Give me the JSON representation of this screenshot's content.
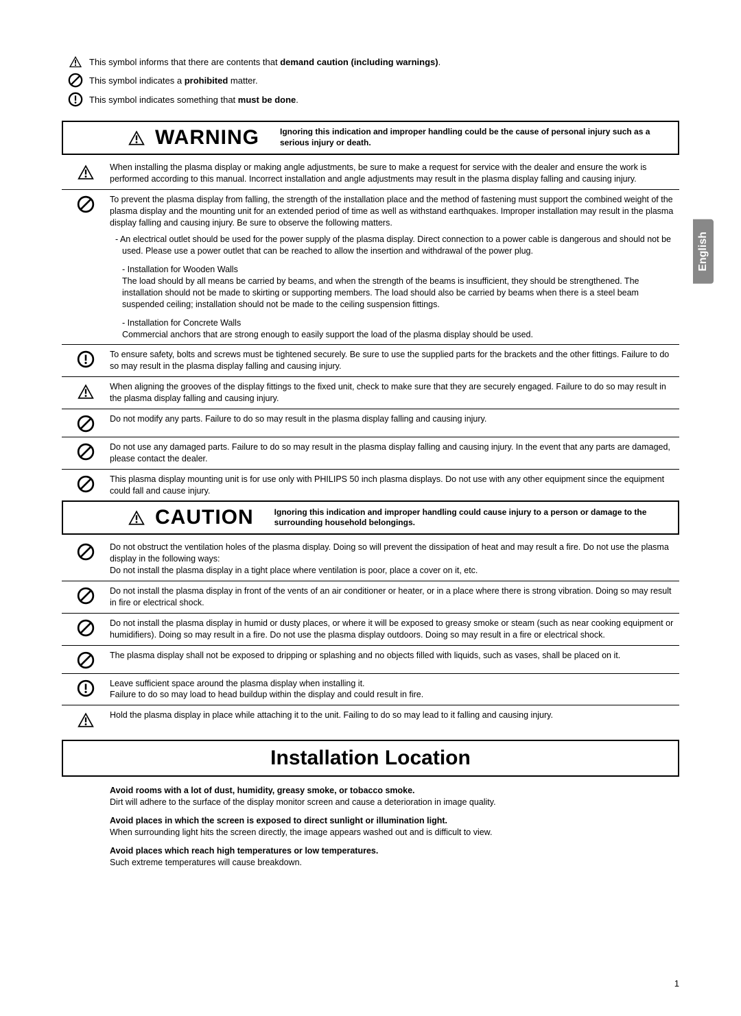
{
  "colors": {
    "text": "#000000",
    "background": "#ffffff",
    "border": "#000000",
    "langTabBg": "#888888",
    "langTabText": "#ffffff"
  },
  "typography": {
    "body_fontsize": 12.5,
    "heading_fontsize": 30,
    "legend_fontsize": 13
  },
  "legend": {
    "caution_pre": "This symbol informs that there are contents that ",
    "caution_bold": "demand caution (including warnings)",
    "caution_post": ".",
    "prohibit_pre": "This symbol indicates a ",
    "prohibit_bold": "prohibited",
    "prohibit_post": " matter.",
    "mustdo_pre": "This symbol indicates something that ",
    "mustdo_bold": "must be done",
    "mustdo_post": "."
  },
  "warning": {
    "title": "WARNING",
    "subtitle": "Ignoring this indication and improper handling could be the cause of personal injury such as a serious injury or death.",
    "items": [
      {
        "icon": "triangle",
        "text": "When installing the plasma display or making angle adjustments, be sure to make a request for service with the dealer and ensure the work is performed according to this manual. Incorrect installation and angle adjustments may result in the plasma display falling and causing injury."
      },
      {
        "icon": "prohibit",
        "text": "To prevent the plasma display from falling, the strength of the installation place and the method of fastening must support the combined weight of the plasma display and the mounting unit for an extended period of time as well as withstand earthquakes. Improper installation may result in the plasma display falling and causing injury. Be sure to observe the following matters.",
        "sub": [
          {
            "type": "dash",
            "text": "An electrical outlet should be used for the power supply of the plasma display. Direct connection to a power cable is dangerous and should not be used. Please use a power outlet that can be reached to allow the insertion and withdrawal of the power plug."
          },
          {
            "type": "titled",
            "title": "- Installation for Wooden Walls",
            "text": "The load should by all means be carried by beams, and when the strength of the beams is insufficient, they should be strengthened. The installation should not be made to skirting or supporting members. The load should also be carried by beams when there is a steel beam suspended ceiling; installation should not be made to the ceiling suspension fittings."
          },
          {
            "type": "titled",
            "title": "- Installation for Concrete Walls",
            "text": "Commercial anchors that are strong enough to easily support the load of the plasma display should be used."
          }
        ]
      },
      {
        "icon": "mustdo",
        "text": "To ensure safety, bolts and screws must be tightened securely. Be sure to use the supplied parts for the brackets and the other fittings. Failure to do so may result in the plasma display falling and causing injury."
      },
      {
        "icon": "triangle",
        "text": "When aligning the grooves of the display fittings to the fixed unit, check to make sure that they are securely engaged. Failure to do so may result in the plasma display falling and causing injury."
      },
      {
        "icon": "prohibit",
        "text": "Do not modify any parts. Failure to do so may result in the plasma display falling and causing injury."
      },
      {
        "icon": "prohibit",
        "text": "Do not use any damaged parts. Failure to do so may result in the plasma display falling and causing injury. In the event that any parts are damaged, please contact the dealer."
      },
      {
        "icon": "prohibit",
        "text": "This plasma display mounting unit is for use only with PHILIPS 50 inch plasma displays. Do not use with any other equipment since the equipment could fall and cause injury."
      }
    ]
  },
  "caution": {
    "title": "CAUTION",
    "subtitle": "Ignoring this indication and improper handling could cause injury to a person or damage to the surrounding household belongings.",
    "items": [
      {
        "icon": "prohibit",
        "text": "Do not obstruct the ventilation holes of the plasma display. Doing so will prevent the dissipation of heat and may result a fire. Do not use the plasma display in the following ways:\nDo not install the plasma display in a tight place where ventilation is poor, place a cover on it, etc."
      },
      {
        "icon": "prohibit",
        "text": "Do not install the plasma display in front of the vents of an air conditioner or heater, or in a place where there is strong vibration. Doing so may result in fire or electrical shock."
      },
      {
        "icon": "prohibit",
        "text": "Do not install the plasma display in humid or dusty places, or where it will be exposed to greasy smoke or steam (such as near cooking equipment or humidifiers). Doing so may result in a fire. Do not use the plasma display outdoors. Doing so may result in a fire or electrical shock."
      },
      {
        "icon": "prohibit",
        "text": "The plasma display shall not be exposed to dripping or splashing and no objects filled with liquids, such as vases, shall be placed on it."
      },
      {
        "icon": "mustdo",
        "text": "Leave sufficient space around the plasma display when installing it.\nFailure to do so may load to head buildup within the display and could result in fire."
      },
      {
        "icon": "triangle",
        "text": "Hold the plasma display in place while attaching it to the unit. Failing to do so may lead to it falling and causing injury."
      }
    ]
  },
  "installLocation": {
    "title": "Installation Location",
    "blocks": [
      {
        "bold": "Avoid rooms with a lot of dust, humidity, greasy smoke, or tobacco smoke.",
        "text": "Dirt will adhere to the surface of the display monitor screen and cause a deterioration in image quality."
      },
      {
        "bold": "Avoid places in which the screen is exposed to direct sunlight or illumination light.",
        "text": "When surrounding light hits the screen directly, the image appears washed out and is difficult to view."
      },
      {
        "bold": "Avoid places which reach high temperatures or low temperatures.",
        "text": "Such extreme temperatures will cause breakdown."
      }
    ]
  },
  "langTab": "English",
  "pageNumber": "1"
}
